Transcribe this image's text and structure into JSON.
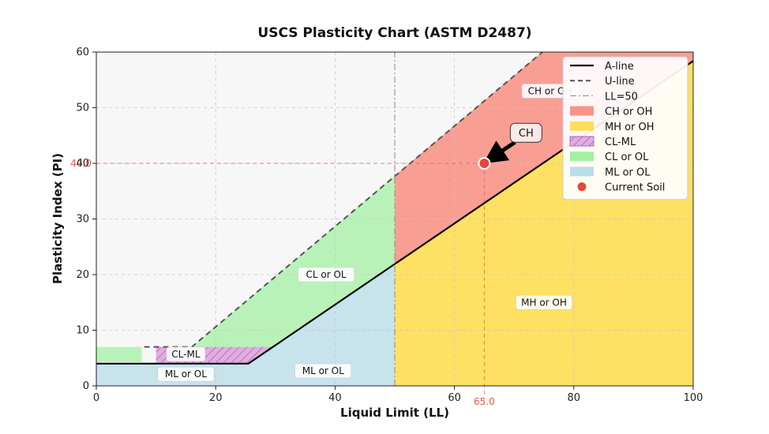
{
  "chart_data": {
    "type": "area",
    "title": "USCS Plasticity Chart (ASTM D2487)",
    "xlabel": "Liquid Limit (LL)",
    "ylabel": "Plasticity Index (PI)",
    "xlim": [
      0,
      100
    ],
    "ylim": [
      0,
      60
    ],
    "xticks": [
      0,
      20,
      40,
      60,
      80,
      100
    ],
    "yticks": [
      0,
      10,
      20,
      30,
      40,
      50,
      60
    ],
    "grid": true,
    "legend_position": "top-right",
    "lines": [
      {
        "name": "A-line",
        "style": "solid",
        "color": "#000000",
        "points": [
          [
            0,
            4
          ],
          [
            25.48,
            4
          ],
          [
            100,
            58.4
          ]
        ]
      },
      {
        "name": "U-line",
        "style": "dashed",
        "color": "#555555",
        "points": [
          [
            8,
            7
          ],
          [
            16,
            7
          ],
          [
            100,
            82.8
          ]
        ]
      },
      {
        "name": "LL=50",
        "style": "dashdot",
        "color": "#999999",
        "points": [
          [
            50,
            0
          ],
          [
            50,
            60
          ]
        ]
      }
    ],
    "regions": [
      {
        "name": "CH or OH",
        "color": "#fa8072",
        "label_at": [
          76,
          53
        ]
      },
      {
        "name": "MH or OH",
        "color": "#ffd93d",
        "label_at": [
          75,
          15
        ]
      },
      {
        "name": "CL-ML",
        "color": "#dda0dd",
        "hatched": true,
        "label_at": [
          15,
          5.7
        ]
      },
      {
        "name": "CL or OL",
        "color": "#90ee90",
        "label_at": [
          38.5,
          20
        ]
      },
      {
        "name": "ML or OL",
        "color": "#add8e6",
        "label_at": [
          38,
          2.7
        ]
      }
    ],
    "extra_region_labels": [
      {
        "text": "ML or OL",
        "at": [
          15,
          2.1
        ]
      }
    ],
    "point": {
      "name": "Current Soil",
      "x": 65,
      "y": 40,
      "color": "#e8453c",
      "classification": "CH"
    },
    "reference_labels": {
      "x_value": "65.0",
      "y_value": "40.0"
    },
    "callout": {
      "text": "CH",
      "box_at": [
        72,
        45.5
      ]
    },
    "legend": [
      {
        "label": "A-line",
        "kind": "line-solid"
      },
      {
        "label": "U-line",
        "kind": "line-dashed"
      },
      {
        "label": "LL=50",
        "kind": "line-dashdot"
      },
      {
        "label": "CH or OH",
        "kind": "patch",
        "color": "#fa8072"
      },
      {
        "label": "MH or OH",
        "kind": "patch",
        "color": "#ffd93d"
      },
      {
        "label": "CL-ML",
        "kind": "patch-hatch",
        "color": "#dda0dd"
      },
      {
        "label": "CL or OL",
        "kind": "patch",
        "color": "#90ee90"
      },
      {
        "label": "ML or OL",
        "kind": "patch",
        "color": "#add8e6"
      },
      {
        "label": "Current Soil",
        "kind": "marker",
        "color": "#e8453c"
      }
    ]
  }
}
